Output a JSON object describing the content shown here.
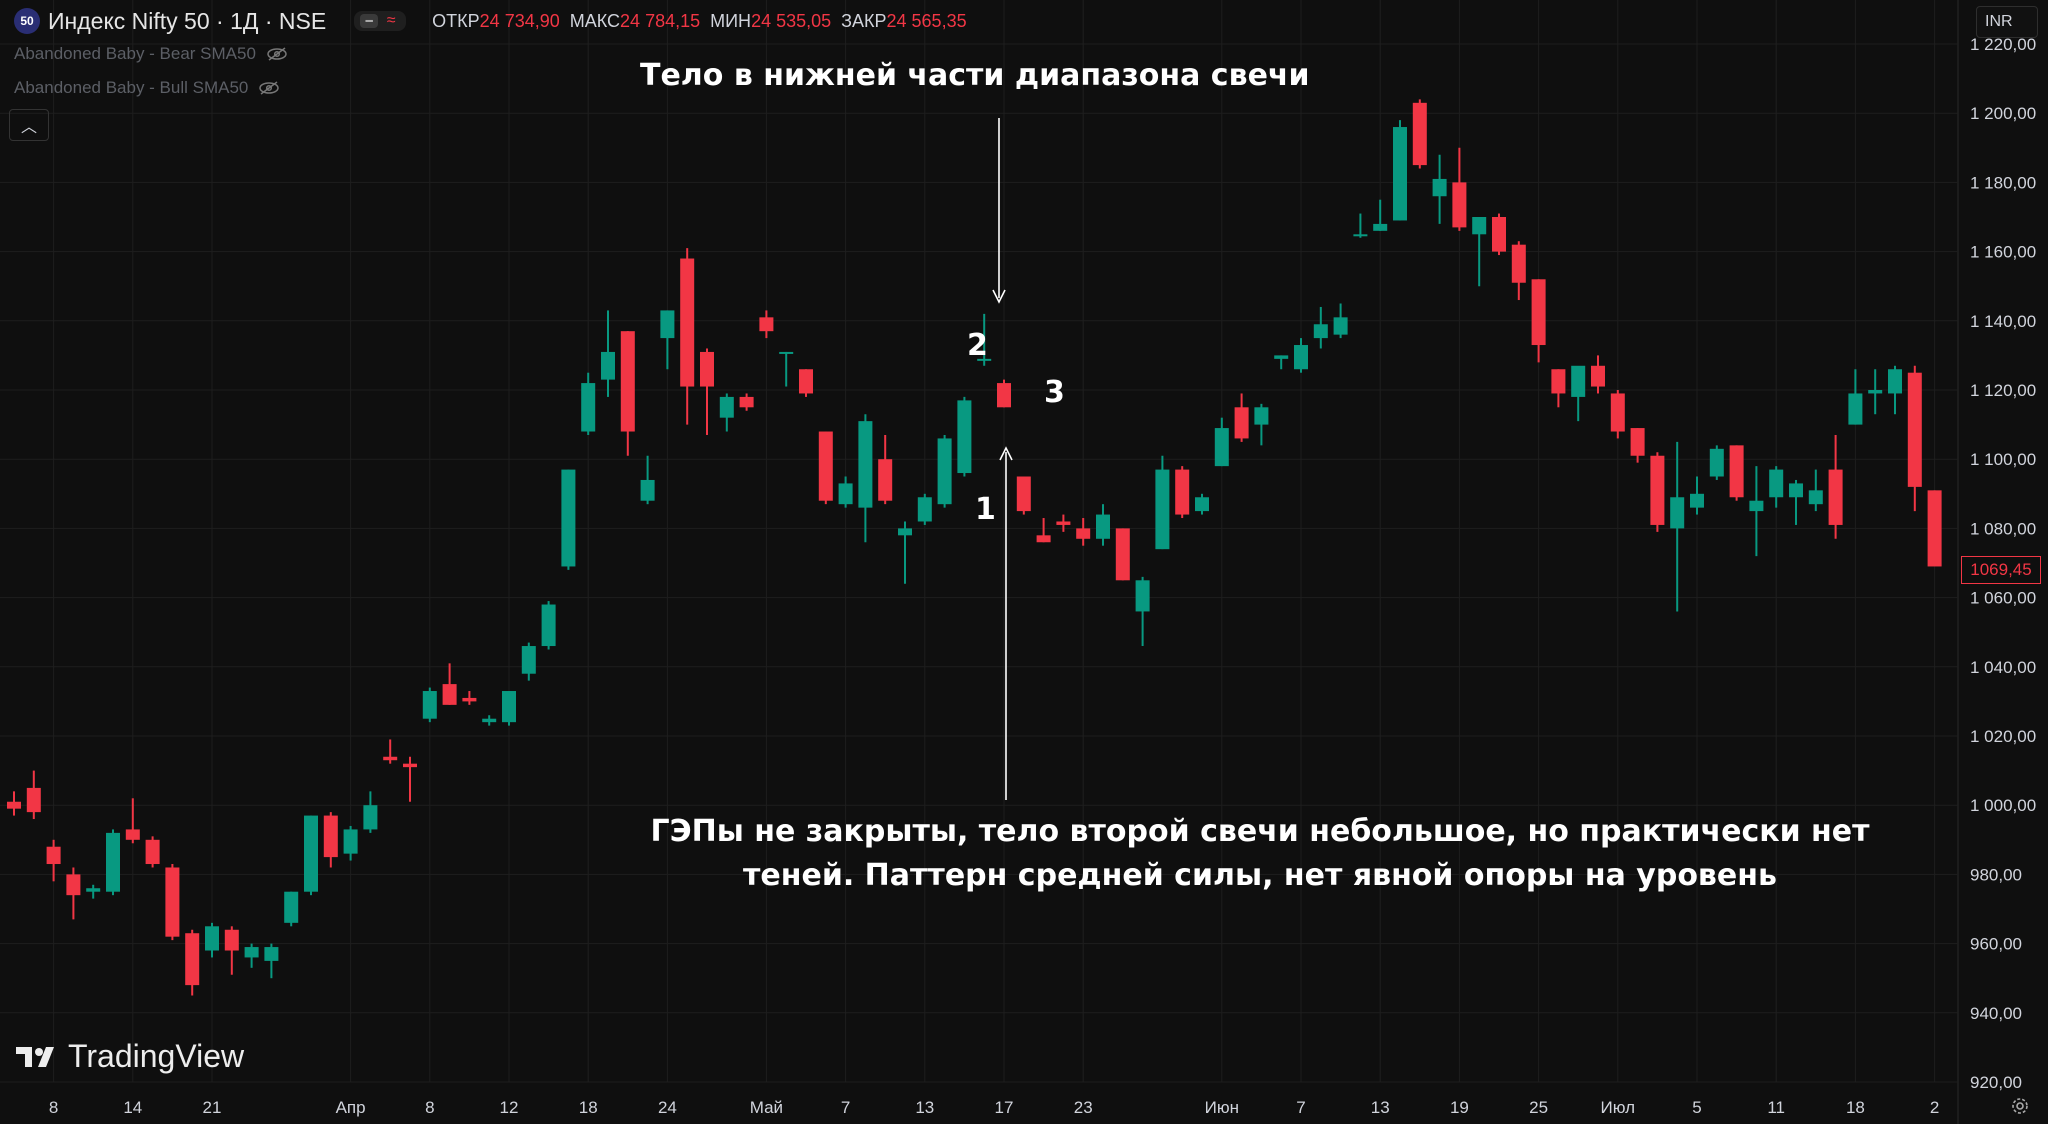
{
  "header": {
    "badge": "50",
    "symbol": "Индекс Nifty 50 · 1Д · NSE",
    "open_label": "ОТКР",
    "open_value": "24 734,90",
    "high_label": "МАКС",
    "high_value": "24 784,15",
    "low_label": "МИН",
    "low_value": "24 535,05",
    "close_label": "ЗАКР",
    "close_value": "24 565,35",
    "pill_icon": "wave-icon"
  },
  "indicators": [
    {
      "label": "Abandoned Baby - Bear SMA50",
      "icon": "eye-off-icon"
    },
    {
      "label": "Abandoned Baby - Bull SMA50",
      "icon": "eye-off-icon"
    }
  ],
  "currency": "INR",
  "last_price": "1069,45",
  "annotations": {
    "top": "Тело в нижней части диапазона свечи",
    "bottom": "ГЭПы не закрыты, тело второй свечи небольшое, но практически нет теней. Паттерн средней силы, нет явной опоры на уровень",
    "n1": "1",
    "n2": "2",
    "n3": "3"
  },
  "brand": "TradingView",
  "colors": {
    "up": "#089981",
    "down": "#f23645",
    "background": "#0f0f0f",
    "grid": "#1e1e1e"
  },
  "chart_data": {
    "type": "candlestick",
    "ylim": [
      920,
      1222
    ],
    "y_ticks": [
      "920,00",
      "940,00",
      "960,00",
      "980,00",
      "1 000,00",
      "1 020,00",
      "1 040,00",
      "1 060,00",
      "1 080,00",
      "1 100,00",
      "1 120,00",
      "1 140,00",
      "1 160,00",
      "1 180,00",
      "1 200,00",
      "1 220,00"
    ],
    "x_ticks": [
      {
        "label": "8",
        "bar": 2
      },
      {
        "label": "14",
        "bar": 6
      },
      {
        "label": "21",
        "bar": 10
      },
      {
        "label": "Апр",
        "bar": 17
      },
      {
        "label": "8",
        "bar": 21
      },
      {
        "label": "12",
        "bar": 25
      },
      {
        "label": "18",
        "bar": 29
      },
      {
        "label": "24",
        "bar": 33
      },
      {
        "label": "Май",
        "bar": 38
      },
      {
        "label": "7",
        "bar": 42
      },
      {
        "label": "13",
        "bar": 46
      },
      {
        "label": "17",
        "bar": 50
      },
      {
        "label": "23",
        "bar": 54
      },
      {
        "label": "Июн",
        "bar": 61
      },
      {
        "label": "7",
        "bar": 65
      },
      {
        "label": "13",
        "bar": 69
      },
      {
        "label": "19",
        "bar": 73
      },
      {
        "label": "25",
        "bar": 77
      },
      {
        "label": "Июл",
        "bar": 81
      },
      {
        "label": "5",
        "bar": 85
      },
      {
        "label": "11",
        "bar": 89
      },
      {
        "label": "18",
        "bar": 93
      },
      {
        "label": "2",
        "bar": 97
      }
    ],
    "candles": [
      [
        1001,
        1004,
        997,
        999
      ],
      [
        1005,
        1010,
        996,
        998
      ],
      [
        988,
        990,
        978,
        983
      ],
      [
        980,
        982,
        967,
        974
      ],
      [
        975,
        977,
        973,
        976
      ],
      [
        975,
        993,
        974,
        992
      ],
      [
        993,
        1002,
        989,
        990
      ],
      [
        990,
        991,
        982,
        983
      ],
      [
        982,
        983,
        961,
        962
      ],
      [
        963,
        964,
        945,
        948
      ],
      [
        958,
        966,
        956,
        965
      ],
      [
        964,
        965,
        951,
        958
      ],
      [
        956,
        960,
        953,
        959
      ],
      [
        955,
        960,
        950,
        959
      ],
      [
        966,
        975,
        965,
        975
      ],
      [
        975,
        997,
        974,
        997
      ],
      [
        997,
        998,
        982,
        985
      ],
      [
        986,
        994,
        984,
        993
      ],
      [
        993,
        1004,
        992,
        1000
      ],
      [
        1014,
        1019,
        1012,
        1013
      ],
      [
        1012,
        1014,
        1001,
        1011
      ],
      [
        1025,
        1034,
        1024,
        1033
      ],
      [
        1035,
        1041,
        1029,
        1029
      ],
      [
        1031,
        1033,
        1029,
        1030
      ],
      [
        1024,
        1026,
        1023,
        1025
      ],
      [
        1024,
        1033,
        1023,
        1033
      ],
      [
        1038,
        1047,
        1036,
        1046
      ],
      [
        1046,
        1059,
        1045,
        1058
      ],
      [
        1069,
        1097,
        1068,
        1097
      ],
      [
        1108,
        1125,
        1107,
        1122
      ],
      [
        1123,
        1143,
        1118,
        1131
      ],
      [
        1137,
        1137,
        1101,
        1108
      ],
      [
        1088,
        1101,
        1087,
        1094
      ],
      [
        1135,
        1143,
        1126,
        1143
      ],
      [
        1158,
        1161,
        1110,
        1121
      ],
      [
        1131,
        1132,
        1107,
        1121
      ],
      [
        1112,
        1119,
        1108,
        1118
      ],
      [
        1118,
        1119,
        1114,
        1115
      ],
      [
        1141,
        1143,
        1135,
        1137
      ],
      [
        1131,
        1131,
        1121,
        1131
      ],
      [
        1126,
        1126,
        1118,
        1119
      ],
      [
        1108,
        1108,
        1087,
        1088
      ],
      [
        1087,
        1095,
        1086,
        1093
      ],
      [
        1086,
        1113,
        1076,
        1111
      ],
      [
        1100,
        1107,
        1087,
        1088
      ],
      [
        1078,
        1082,
        1064,
        1080
      ],
      [
        1082,
        1090,
        1081,
        1089
      ],
      [
        1087,
        1107,
        1086,
        1106
      ],
      [
        1096,
        1118,
        1095,
        1117
      ],
      [
        1129,
        1142,
        1127,
        1129
      ],
      [
        1122,
        1123,
        1115,
        1115
      ],
      [
        1095,
        1095,
        1084,
        1085
      ],
      [
        1078,
        1083,
        1076,
        1076
      ],
      [
        1082,
        1084,
        1079,
        1081
      ],
      [
        1080,
        1083,
        1075,
        1077
      ],
      [
        1077,
        1087,
        1075,
        1084
      ],
      [
        1080,
        1080,
        1065,
        1065
      ],
      [
        1056,
        1066,
        1046,
        1065
      ],
      [
        1074,
        1101,
        1074,
        1097
      ],
      [
        1097,
        1098,
        1083,
        1084
      ],
      [
        1085,
        1090,
        1084,
        1089
      ],
      [
        1098,
        1112,
        1098,
        1109
      ],
      [
        1115,
        1119,
        1105,
        1106
      ],
      [
        1110,
        1116,
        1104,
        1115
      ],
      [
        1129,
        1130,
        1126,
        1130
      ],
      [
        1126,
        1135,
        1125,
        1133
      ],
      [
        1135,
        1144,
        1132,
        1139
      ],
      [
        1136,
        1145,
        1135,
        1141
      ],
      [
        1165,
        1171,
        1164,
        1165
      ],
      [
        1166,
        1175,
        1166,
        1168
      ],
      [
        1169,
        1198,
        1169,
        1196
      ],
      [
        1203,
        1204,
        1184,
        1185
      ],
      [
        1176,
        1188,
        1168,
        1181
      ],
      [
        1180,
        1190,
        1166,
        1167
      ],
      [
        1165,
        1170,
        1150,
        1170
      ],
      [
        1170,
        1171,
        1159,
        1160
      ],
      [
        1162,
        1163,
        1146,
        1151
      ],
      [
        1152,
        1152,
        1128,
        1133
      ],
      [
        1126,
        1126,
        1115,
        1119
      ],
      [
        1118,
        1126,
        1111,
        1127
      ],
      [
        1127,
        1130,
        1119,
        1121
      ],
      [
        1119,
        1120,
        1106,
        1108
      ],
      [
        1109,
        1109,
        1099,
        1101
      ],
      [
        1101,
        1102,
        1079,
        1081
      ],
      [
        1080,
        1105,
        1056,
        1089
      ],
      [
        1086,
        1095,
        1084,
        1090
      ],
      [
        1095,
        1104,
        1094,
        1103
      ],
      [
        1104,
        1104,
        1088,
        1089
      ],
      [
        1085,
        1098,
        1072,
        1088
      ],
      [
        1089,
        1098,
        1086,
        1097
      ],
      [
        1089,
        1094,
        1081,
        1093
      ],
      [
        1087,
        1097,
        1085,
        1091
      ],
      [
        1097,
        1107,
        1077,
        1081
      ],
      [
        1110,
        1126,
        1110,
        1119
      ],
      [
        1119,
        1126,
        1113,
        1120
      ],
      [
        1119,
        1127,
        1113,
        1126
      ],
      [
        1125,
        1127,
        1085,
        1092
      ],
      [
        1091,
        1091,
        1070,
        1069
      ]
    ]
  }
}
